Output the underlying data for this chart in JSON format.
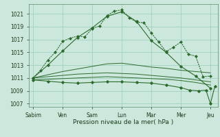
{
  "background_color": "#cce8dc",
  "grid_color": "#99ccbb",
  "line_color": "#2d6a2d",
  "title": "Pression niveau de la mer( hPa )",
  "ylim": [
    1006.5,
    1022.5
  ],
  "yticks": [
    1007,
    1009,
    1011,
    1013,
    1015,
    1017,
    1019,
    1021
  ],
  "xlabels": [
    "Sabim",
    "Ven",
    "Sam",
    "Lun",
    "Mar",
    "Mer",
    "Jeu"
  ],
  "x_positions": [
    0,
    1,
    2,
    3,
    4,
    5,
    6
  ],
  "main_dotted": {
    "x": [
      0.0,
      0.25,
      0.5,
      0.75,
      1.0,
      1.25,
      1.5,
      1.75,
      2.0,
      2.25,
      2.5,
      2.75,
      3.0,
      3.25,
      3.5,
      3.75,
      4.0,
      4.25,
      4.5,
      4.75,
      5.0,
      5.25,
      5.5,
      5.75,
      6.0
    ],
    "y": [
      1011.0,
      1012.2,
      1013.8,
      1015.0,
      1016.7,
      1017.2,
      1017.5,
      1017.4,
      1018.7,
      1019.1,
      1020.7,
      1021.4,
      1021.6,
      1020.4,
      1019.7,
      1019.6,
      1018.0,
      1016.6,
      1015.1,
      1015.8,
      1016.6,
      1014.7,
      1014.4,
      1011.2,
      1011.3
    ]
  },
  "line_high": {
    "x": [
      0.0,
      0.5,
      1.0,
      1.5,
      2.0,
      2.5,
      3.0,
      3.5,
      4.0,
      4.5,
      5.0,
      5.5,
      6.0
    ],
    "y": [
      1011.0,
      1013.0,
      1015.2,
      1017.3,
      1018.8,
      1020.6,
      1021.3,
      1019.8,
      1016.8,
      1015.0,
      1012.8,
      1011.3,
      1009.4
    ]
  },
  "line_mid_high": {
    "x": [
      0.0,
      0.5,
      1.0,
      1.5,
      2.0,
      2.5,
      3.0,
      3.5,
      4.0,
      4.5,
      5.0,
      5.5,
      6.0
    ],
    "y": [
      1011.0,
      1011.5,
      1012.0,
      1012.4,
      1012.8,
      1013.2,
      1013.3,
      1013.0,
      1012.7,
      1012.5,
      1012.2,
      1012.0,
      1011.8
    ]
  },
  "line_mid": {
    "x": [
      0.0,
      0.5,
      1.0,
      1.5,
      2.0,
      2.5,
      3.0,
      3.5,
      4.0,
      4.5,
      5.0,
      5.5,
      6.0
    ],
    "y": [
      1011.0,
      1011.2,
      1011.4,
      1011.6,
      1011.7,
      1011.8,
      1011.7,
      1011.6,
      1011.4,
      1011.2,
      1011.0,
      1010.7,
      1010.4
    ]
  },
  "line_low": {
    "x": [
      0.0,
      0.5,
      1.0,
      1.5,
      2.0,
      2.5,
      3.0,
      3.5,
      4.0,
      4.5,
      5.0,
      5.5,
      6.0
    ],
    "y": [
      1010.7,
      1010.8,
      1010.9,
      1011.0,
      1011.1,
      1011.2,
      1011.1,
      1011.0,
      1010.9,
      1010.8,
      1010.6,
      1010.3,
      1009.9
    ]
  },
  "line_bottom": {
    "x": [
      0.0,
      0.5,
      1.0,
      1.5,
      2.0,
      2.5,
      3.0,
      3.5,
      4.0,
      4.5,
      5.0,
      5.3,
      5.6,
      5.85,
      6.0,
      6.15
    ],
    "y": [
      1010.7,
      1010.5,
      1010.3,
      1010.2,
      1010.3,
      1010.4,
      1010.4,
      1010.3,
      1010.2,
      1009.9,
      1009.5,
      1009.1,
      1009.0,
      1009.1,
      1007.0,
      1009.7
    ]
  }
}
